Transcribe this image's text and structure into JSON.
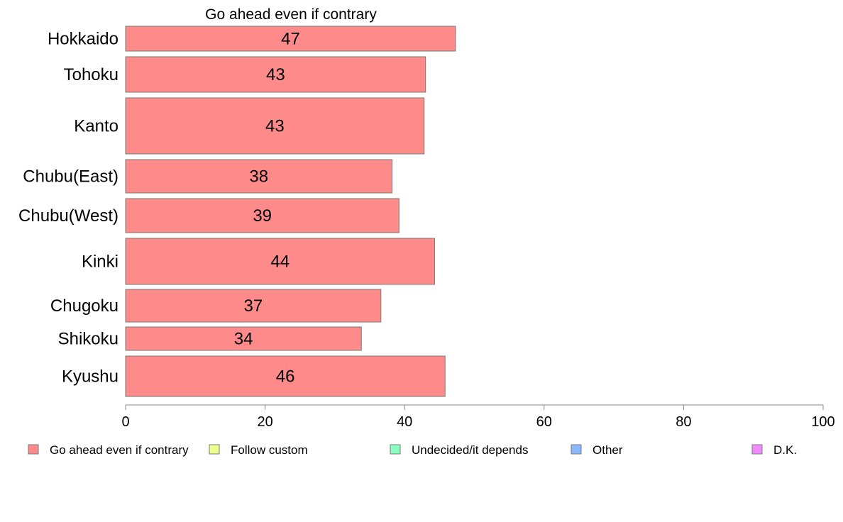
{
  "chart_data": {
    "type": "bar",
    "orientation": "horizontal",
    "title": "Go ahead even if contrary",
    "categories": [
      "Hokkaido",
      "Tohoku",
      "Kanto",
      "Chubu(East)",
      "Chubu(West)",
      "Kinki",
      "Chugoku",
      "Shikoku",
      "Kyushu"
    ],
    "series": [
      {
        "name": "Go ahead even if contrary",
        "values": [
          47.3,
          43.0,
          42.8,
          38.2,
          39.2,
          44.3,
          36.6,
          33.8,
          45.8
        ],
        "labels": [
          "47",
          "43",
          "43",
          "38",
          "39",
          "44",
          "37",
          "34",
          "46"
        ],
        "color": "#ff8a8a"
      }
    ],
    "xlim": [
      0,
      100
    ],
    "xticks": [
      0,
      20,
      40,
      60,
      80,
      100
    ],
    "xtick_labels": [
      "0",
      "20",
      "40",
      "60",
      "80",
      "100"
    ],
    "grid": false,
    "legend": {
      "placement": "bottom",
      "items": [
        {
          "label": "Go ahead even if contrary",
          "color": "#ff8a8a"
        },
        {
          "label": "Follow custom",
          "color": "#f0ff8a"
        },
        {
          "label": "Undecided/it depends",
          "color": "#8affc0"
        },
        {
          "label": "Other",
          "color": "#8ab8ff"
        },
        {
          "label": "D.K.",
          "color": "#f08aff"
        }
      ]
    }
  }
}
